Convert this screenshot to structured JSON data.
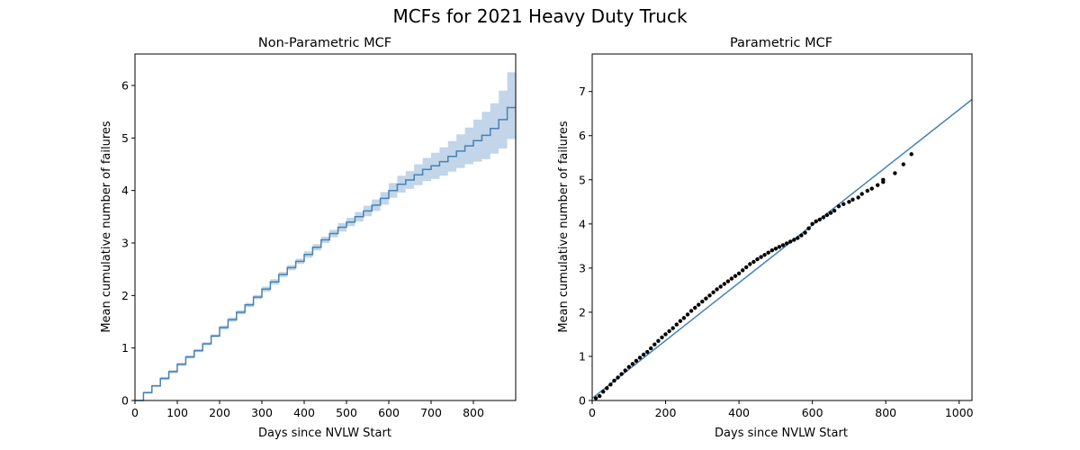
{
  "figure": {
    "title": "MCFs for 2021 Heavy Duty Truck"
  },
  "colors": {
    "line": "#4682b4",
    "ci_band": "#c2d5e9",
    "points": "#000000"
  },
  "chart_data": [
    {
      "type": "line",
      "title": "Non-Parametric MCF",
      "xlabel": "Days since NVLW Start",
      "ylabel": "Mean cumulative number of failures",
      "xlim": [
        0,
        900
      ],
      "ylim": [
        0,
        6.6
      ],
      "xticks": [
        "0",
        "100",
        "200",
        "300",
        "400",
        "500",
        "600",
        "700",
        "800"
      ],
      "yticks": [
        "0",
        "1",
        "2",
        "3",
        "4",
        "5",
        "6"
      ],
      "grid": false,
      "series": [
        {
          "style": "step",
          "x": [
            0,
            20,
            40,
            60,
            80,
            100,
            120,
            140,
            160,
            180,
            200,
            220,
            240,
            260,
            280,
            300,
            320,
            340,
            360,
            380,
            400,
            420,
            440,
            460,
            480,
            500,
            520,
            540,
            560,
            580,
            600,
            620,
            640,
            660,
            680,
            700,
            720,
            740,
            760,
            780,
            800,
            820,
            840,
            860,
            880,
            900
          ],
          "y": [
            0,
            0.15,
            0.28,
            0.42,
            0.55,
            0.69,
            0.83,
            0.95,
            1.08,
            1.23,
            1.39,
            1.54,
            1.68,
            1.82,
            1.97,
            2.12,
            2.26,
            2.4,
            2.53,
            2.65,
            2.78,
            2.92,
            3.06,
            3.18,
            3.3,
            3.4,
            3.5,
            3.61,
            3.72,
            3.85,
            4.0,
            4.12,
            4.2,
            4.3,
            4.4,
            4.47,
            4.55,
            4.65,
            4.75,
            4.85,
            4.95,
            5.05,
            5.18,
            5.35,
            5.58,
            5.58
          ],
          "lower": [
            0,
            0.13,
            0.26,
            0.39,
            0.52,
            0.66,
            0.8,
            0.92,
            1.05,
            1.2,
            1.35,
            1.5,
            1.64,
            1.78,
            1.93,
            2.07,
            2.21,
            2.35,
            2.48,
            2.6,
            2.72,
            2.86,
            3.0,
            3.11,
            3.22,
            3.32,
            3.41,
            3.51,
            3.61,
            3.73,
            3.86,
            3.96,
            4.03,
            4.1,
            4.18,
            4.22,
            4.28,
            4.36,
            4.43,
            4.5,
            4.55,
            4.6,
            4.7,
            4.8,
            4.98,
            4.98
          ],
          "upper": [
            0,
            0.17,
            0.3,
            0.45,
            0.58,
            0.72,
            0.86,
            0.98,
            1.11,
            1.26,
            1.43,
            1.58,
            1.72,
            1.86,
            2.01,
            2.17,
            2.31,
            2.45,
            2.58,
            2.7,
            2.84,
            2.98,
            3.12,
            3.25,
            3.38,
            3.48,
            3.59,
            3.71,
            3.83,
            3.97,
            4.14,
            4.28,
            4.37,
            4.5,
            4.62,
            4.72,
            4.82,
            4.94,
            5.07,
            5.2,
            5.35,
            5.5,
            5.66,
            5.9,
            6.25,
            6.25
          ]
        }
      ]
    },
    {
      "type": "scatter",
      "title": "Parametric MCF",
      "xlabel": "Days since NVLW Start",
      "ylabel": "Mean cumulative number of failures",
      "xlim": [
        0,
        1035
      ],
      "ylim": [
        0,
        7.85
      ],
      "xticks": [
        "0",
        "200",
        "400",
        "600",
        "800",
        "1000"
      ],
      "yticks": [
        "0",
        "1",
        "2",
        "3",
        "4",
        "5",
        "6",
        "7"
      ],
      "grid": false,
      "fit_line": {
        "x": [
          0,
          1035
        ],
        "y": [
          0.05,
          6.82
        ]
      },
      "points": {
        "x": [
          10,
          20,
          30,
          40,
          50,
          60,
          70,
          80,
          90,
          100,
          110,
          120,
          130,
          140,
          150,
          160,
          170,
          180,
          190,
          200,
          210,
          220,
          230,
          240,
          250,
          260,
          270,
          280,
          290,
          300,
          310,
          320,
          330,
          340,
          350,
          360,
          370,
          380,
          390,
          400,
          410,
          420,
          430,
          440,
          450,
          460,
          470,
          480,
          490,
          500,
          510,
          520,
          530,
          540,
          550,
          560,
          570,
          580,
          590,
          600,
          610,
          620,
          630,
          640,
          650,
          660,
          672,
          685,
          700,
          710,
          725,
          735,
          750,
          762,
          778,
          793,
          793,
          825,
          848,
          870
        ],
        "y": [
          0.05,
          0.1,
          0.2,
          0.28,
          0.36,
          0.45,
          0.52,
          0.6,
          0.68,
          0.76,
          0.83,
          0.9,
          0.97,
          1.04,
          1.1,
          1.18,
          1.27,
          1.35,
          1.43,
          1.5,
          1.57,
          1.64,
          1.72,
          1.8,
          1.87,
          1.95,
          2.03,
          2.1,
          2.17,
          2.24,
          2.31,
          2.38,
          2.45,
          2.52,
          2.58,
          2.64,
          2.7,
          2.76,
          2.82,
          2.88,
          2.95,
          3.02,
          3.09,
          3.14,
          3.2,
          3.25,
          3.3,
          3.35,
          3.4,
          3.44,
          3.48,
          3.52,
          3.56,
          3.6,
          3.64,
          3.68,
          3.74,
          3.8,
          3.9,
          4.0,
          4.06,
          4.1,
          4.15,
          4.2,
          4.25,
          4.3,
          4.4,
          4.45,
          4.5,
          4.55,
          4.6,
          4.68,
          4.75,
          4.8,
          4.88,
          4.95,
          5.0,
          5.15,
          5.35,
          5.58
        ]
      }
    }
  ]
}
